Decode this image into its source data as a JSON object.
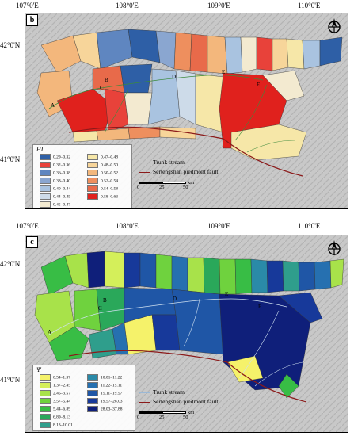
{
  "panel_b": {
    "letter": "b",
    "lon_labels": [
      "107°0'E",
      "108°0'E",
      "109°0'E",
      "110°0'E"
    ],
    "lat_labels": [
      "42°0'N",
      "41°0'N"
    ],
    "points": [
      "A",
      "B",
      "C",
      "D",
      "E",
      "F"
    ],
    "legend_title": "HI",
    "legend_items": [
      {
        "label": "0.29–0.32",
        "color": "#2e5fa6"
      },
      {
        "label": "0.32–0.36",
        "color": "#e8423a"
      },
      {
        "label": "0.36–0.38",
        "color": "#5f86c0"
      },
      {
        "label": "0.38–0.40",
        "color": "#8aa6d0"
      },
      {
        "label": "0.40–0.44",
        "color": "#a9c3e0"
      },
      {
        "label": "0.44–0.45",
        "color": "#cddbe9"
      },
      {
        "label": "0.45–0.47",
        "color": "#f3ead0"
      },
      {
        "label": "0.47–0.48",
        "color": "#f6e7a8"
      },
      {
        "label": "0.48–0.50",
        "color": "#f7d59a"
      },
      {
        "label": "0.50–0.52",
        "color": "#f3b77c"
      },
      {
        "label": "0.52–0.54",
        "color": "#ee8f5e"
      },
      {
        "label": "0.54–0.58",
        "color": "#e86a4a"
      },
      {
        "label": "0.58–0.63",
        "color": "#e0211d"
      }
    ],
    "lines": [
      {
        "label": "Trunk stream",
        "color": "#3c8a3c"
      },
      {
        "label": "Sertengshan piedmont fault",
        "color": "#8b1a1a"
      }
    ],
    "scale": {
      "ticks": [
        "0",
        "25",
        "50"
      ],
      "unit": "km"
    }
  },
  "panel_c": {
    "letter": "c",
    "lon_labels": [
      "107°0'E",
      "108°0'E",
      "109°0'E",
      "110°0'E"
    ],
    "lat_labels": [
      "42°0'N",
      "41°0'N"
    ],
    "points": [
      "A",
      "B",
      "C",
      "D",
      "E",
      "F"
    ],
    "legend_title": "Ψ",
    "legend_items": [
      {
        "label": "0.54–1.37",
        "color": "#f5f26a"
      },
      {
        "label": "1.37–2.45",
        "color": "#d4ef5a"
      },
      {
        "label": "2.45–3.57",
        "color": "#a8e24a"
      },
      {
        "label": "3.57–5.44",
        "color": "#6fd23e"
      },
      {
        "label": "5.44–6.89",
        "color": "#38bd45"
      },
      {
        "label": "6.89–8.13",
        "color": "#2aa85a"
      },
      {
        "label": "8.13–10.01",
        "color": "#2f9e8c"
      },
      {
        "label": "10.01–11.22",
        "color": "#2a8aa8"
      },
      {
        "label": "11.22–15.11",
        "color": "#2670b0"
      },
      {
        "label": "15.11–19.57",
        "color": "#1f56a6"
      },
      {
        "label": "19.57–28.03",
        "color": "#17399a"
      },
      {
        "label": "28.03–37.88",
        "color": "#0f1f7a"
      }
    ],
    "lines": [
      {
        "label": "Trunk stream",
        "color": "#cfe0f0"
      },
      {
        "label": "Sertengshan piedmont fault",
        "color": "#8b1a1a"
      }
    ],
    "scale": {
      "ticks": [
        "0",
        "25",
        "50"
      ],
      "unit": "km"
    }
  }
}
